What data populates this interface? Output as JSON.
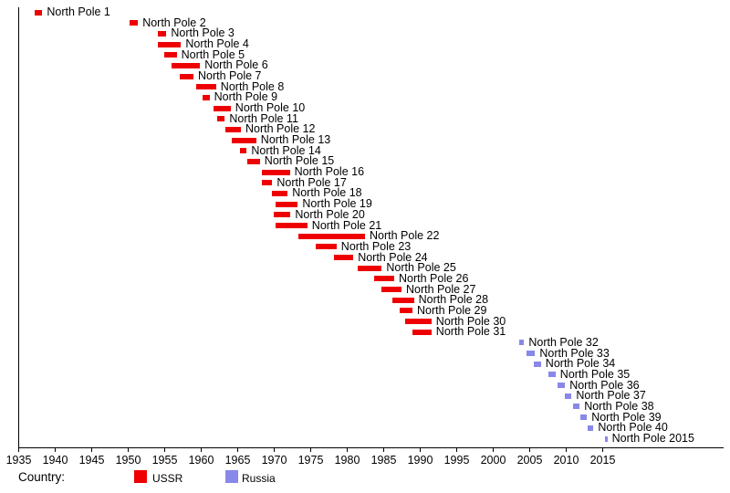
{
  "figure": {
    "legend": {
      "title": "Country:",
      "entries": [
        {
          "label": "USSR",
          "color": "#ee0000"
        },
        {
          "label": "Russia",
          "color": "#8888e8"
        }
      ]
    }
  },
  "chart_data": {
    "type": "bar",
    "subtype": "horizontal-gantt-timeline",
    "title": "",
    "xlabel": "",
    "ylabel": "",
    "xlim": [
      1935,
      2032
    ],
    "x_ticks": [
      1935,
      1940,
      1945,
      1950,
      1955,
      1960,
      1965,
      1970,
      1975,
      1980,
      1985,
      1990,
      1995,
      2000,
      2005,
      2010,
      2015
    ],
    "grid": false,
    "legend_position": "bottom",
    "legend_title": "Country:",
    "series_colors": {
      "USSR": "#ee0000",
      "Russia": "#8888e8"
    },
    "stations": [
      {
        "label": "North Pole 1",
        "start": 1937.3,
        "end": 1938.3,
        "country": "USSR"
      },
      {
        "label": "North Pole 2",
        "start": 1950.2,
        "end": 1951.4,
        "country": "USSR"
      },
      {
        "label": "North Pole 3",
        "start": 1954.1,
        "end": 1955.3,
        "country": "USSR"
      },
      {
        "label": "North Pole 4",
        "start": 1954.1,
        "end": 1957.3,
        "country": "USSR"
      },
      {
        "label": "North Pole 5",
        "start": 1955.0,
        "end": 1956.7,
        "country": "USSR"
      },
      {
        "label": "North Pole 6",
        "start": 1956.0,
        "end": 1959.9,
        "country": "USSR"
      },
      {
        "label": "North Pole 7",
        "start": 1957.1,
        "end": 1959.0,
        "country": "USSR"
      },
      {
        "label": "North Pole 8",
        "start": 1959.4,
        "end": 1962.1,
        "country": "USSR"
      },
      {
        "label": "North Pole 9",
        "start": 1960.3,
        "end": 1961.2,
        "country": "USSR"
      },
      {
        "label": "North Pole 10",
        "start": 1961.7,
        "end": 1964.1,
        "country": "USSR"
      },
      {
        "label": "North Pole 11",
        "start": 1962.3,
        "end": 1963.3,
        "country": "USSR"
      },
      {
        "label": "North Pole 12",
        "start": 1963.4,
        "end": 1965.5,
        "country": "USSR"
      },
      {
        "label": "North Pole 13",
        "start": 1964.3,
        "end": 1967.6,
        "country": "USSR"
      },
      {
        "label": "North Pole 14",
        "start": 1965.4,
        "end": 1966.3,
        "country": "USSR"
      },
      {
        "label": "North Pole 15",
        "start": 1966.4,
        "end": 1968.1,
        "country": "USSR"
      },
      {
        "label": "North Pole 16",
        "start": 1968.4,
        "end": 1972.2,
        "country": "USSR"
      },
      {
        "label": "North Pole 17",
        "start": 1968.4,
        "end": 1969.8,
        "country": "USSR"
      },
      {
        "label": "North Pole 18",
        "start": 1969.8,
        "end": 1971.9,
        "country": "USSR"
      },
      {
        "label": "North Pole 19",
        "start": 1970.2,
        "end": 1973.3,
        "country": "USSR"
      },
      {
        "label": "North Pole 20",
        "start": 1970.0,
        "end": 1972.3,
        "country": "USSR"
      },
      {
        "label": "North Pole 21",
        "start": 1970.2,
        "end": 1974.6,
        "country": "USSR"
      },
      {
        "label": "North Pole 22",
        "start": 1973.4,
        "end": 1982.5,
        "country": "USSR"
      },
      {
        "label": "North Pole 23",
        "start": 1975.8,
        "end": 1978.6,
        "country": "USSR"
      },
      {
        "label": "North Pole 24",
        "start": 1978.3,
        "end": 1980.9,
        "country": "USSR"
      },
      {
        "label": "North Pole 25",
        "start": 1981.5,
        "end": 1984.8,
        "country": "USSR"
      },
      {
        "label": "North Pole 26",
        "start": 1983.7,
        "end": 1986.5,
        "country": "USSR"
      },
      {
        "label": "North Pole 27",
        "start": 1984.8,
        "end": 1987.5,
        "country": "USSR"
      },
      {
        "label": "North Pole 28",
        "start": 1986.3,
        "end": 1989.2,
        "country": "USSR"
      },
      {
        "label": "North Pole 29",
        "start": 1987.3,
        "end": 1989.0,
        "country": "USSR"
      },
      {
        "label": "North Pole 30",
        "start": 1988.0,
        "end": 1991.6,
        "country": "USSR"
      },
      {
        "label": "North Pole 31",
        "start": 1989.0,
        "end": 1991.6,
        "country": "USSR"
      },
      {
        "label": "North Pole 32",
        "start": 2003.6,
        "end": 2004.3,
        "country": "Russia"
      },
      {
        "label": "North Pole 33",
        "start": 2004.6,
        "end": 2005.8,
        "country": "Russia"
      },
      {
        "label": "North Pole 34",
        "start": 2005.6,
        "end": 2006.6,
        "country": "Russia"
      },
      {
        "label": "North Pole 35",
        "start": 2007.6,
        "end": 2008.6,
        "country": "Russia"
      },
      {
        "label": "North Pole 36",
        "start": 2008.9,
        "end": 2009.9,
        "country": "Russia"
      },
      {
        "label": "North Pole 37",
        "start": 2009.9,
        "end": 2010.8,
        "country": "Russia"
      },
      {
        "label": "North Pole 38",
        "start": 2011.0,
        "end": 2011.9,
        "country": "Russia"
      },
      {
        "label": "North Pole 39",
        "start": 2012.0,
        "end": 2012.9,
        "country": "Russia"
      },
      {
        "label": "North Pole 40",
        "start": 2013.0,
        "end": 2013.8,
        "country": "Russia"
      },
      {
        "label": "North Pole 2015",
        "start": 2015.4,
        "end": 2015.7,
        "country": "Russia"
      }
    ]
  }
}
